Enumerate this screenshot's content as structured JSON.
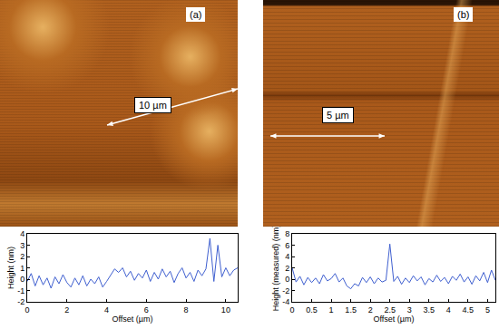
{
  "chart_data": [
    {
      "type": "line",
      "annotations": [
        "(a)",
        "10 µm"
      ],
      "color": "#4060d0",
      "grid": false,
      "x_label": "Offset (µm)",
      "y_label": "Height (nm)",
      "x": [
        0,
        0.2,
        0.4,
        0.6,
        0.8,
        1.0,
        1.2,
        1.4,
        1.6,
        1.8,
        2.0,
        2.2,
        2.4,
        2.6,
        2.8,
        3.0,
        3.2,
        3.4,
        3.6,
        3.8,
        4.0,
        4.2,
        4.4,
        4.6,
        4.8,
        5.0,
        5.2,
        5.4,
        5.6,
        5.8,
        6.0,
        6.2,
        6.4,
        6.6,
        6.8,
        7.0,
        7.2,
        7.4,
        7.6,
        7.8,
        8.0,
        8.2,
        8.4,
        8.6,
        8.8,
        9.0,
        9.2,
        9.4,
        9.6,
        9.8,
        10.0,
        10.2,
        10.4,
        10.6
      ],
      "values": [
        -0.2,
        0.5,
        -0.6,
        0.3,
        -0.5,
        0.1,
        -0.8,
        0.2,
        -0.4,
        0.4,
        -0.3,
        -0.7,
        0.1,
        -0.5,
        0.3,
        -0.6,
        0.0,
        -0.4,
        0.2,
        -0.7,
        -0.2,
        0.3,
        0.9,
        0.6,
        1.0,
        0.2,
        0.7,
        -0.1,
        0.5,
        0.1,
        0.8,
        -0.2,
        0.6,
        0.0,
        0.9,
        0.2,
        0.7,
        -0.3,
        0.5,
        1.0,
        0.1,
        0.6,
        -0.2,
        0.8,
        0.3,
        0.9,
        3.6,
        -0.2,
        3.0,
        0.2,
        1.0,
        0.3,
        0.8,
        1.0
      ],
      "xlim": [
        0,
        10.6
      ],
      "ylim": [
        -2,
        4
      ],
      "xticks": [
        0,
        2,
        4,
        6,
        8,
        10
      ],
      "yticks": [
        -2,
        -1,
        0,
        1,
        2,
        3,
        4
      ]
    },
    {
      "type": "line",
      "annotations": [
        "(b)",
        "5 µm"
      ],
      "color": "#4060d0",
      "grid": false,
      "x_label": "Offset (µm)",
      "y_label": "Height (measured) (nm)",
      "x": [
        0,
        0.1,
        0.2,
        0.3,
        0.4,
        0.5,
        0.6,
        0.7,
        0.8,
        0.9,
        1.0,
        1.1,
        1.2,
        1.3,
        1.4,
        1.5,
        1.6,
        1.7,
        1.8,
        1.9,
        2.0,
        2.1,
        2.2,
        2.3,
        2.4,
        2.5,
        2.6,
        2.7,
        2.8,
        2.9,
        3.0,
        3.1,
        3.2,
        3.3,
        3.4,
        3.5,
        3.6,
        3.7,
        3.8,
        3.9,
        4.0,
        4.1,
        4.2,
        4.3,
        4.4,
        4.5,
        4.6,
        4.7,
        4.8,
        4.9,
        5.0,
        5.1,
        5.2
      ],
      "values": [
        2.0,
        -0.5,
        0.5,
        -1.0,
        0.3,
        -0.6,
        0.2,
        -0.8,
        0.8,
        -0.3,
        0.1,
        1.0,
        -0.5,
        0.2,
        -1.2,
        -1.7,
        -0.8,
        -1.2,
        0.3,
        -0.6,
        0.4,
        -0.8,
        0.2,
        -0.5,
        -0.2,
        6.2,
        -0.4,
        0.5,
        -0.9,
        0.2,
        -0.6,
        0.6,
        -0.3,
        0.4,
        -1.0,
        0.1,
        -0.5,
        0.7,
        -0.4,
        0.3,
        -0.8,
        0.5,
        -0.2,
        0.9,
        -0.5,
        0.4,
        -0.9,
        0.6,
        -0.3,
        1.2,
        -0.6,
        1.6,
        -0.2
      ],
      "xlim": [
        0,
        5.2
      ],
      "ylim": [
        -4,
        8
      ],
      "xticks": [
        0,
        0.5,
        1,
        1.5,
        2,
        2.5,
        3,
        3.5,
        4,
        4.5,
        5
      ],
      "yticks": [
        -4,
        -2,
        0,
        2,
        4,
        6,
        8
      ]
    }
  ]
}
